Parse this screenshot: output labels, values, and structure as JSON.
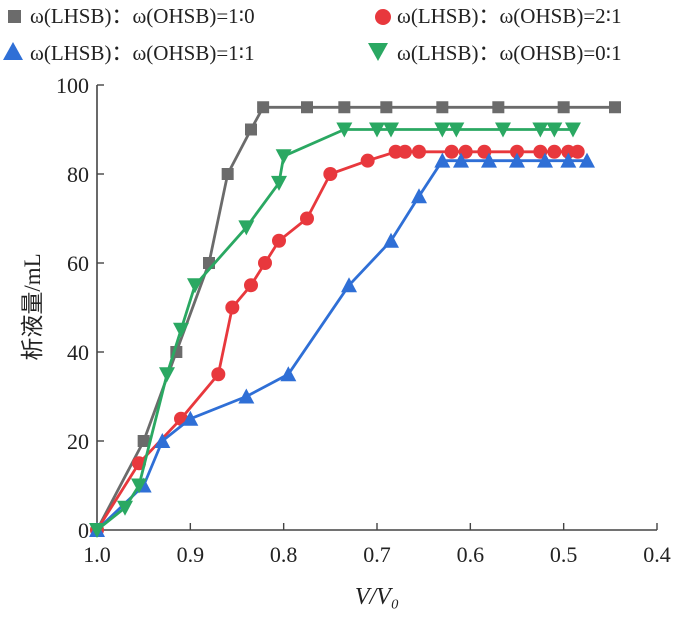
{
  "chart_data": {
    "type": "line",
    "xlabel": "V/V₀",
    "ylabel": "析液量/mL",
    "xlim": [
      1.0,
      0.4
    ],
    "ylim": [
      0,
      100
    ],
    "x_reversed": true,
    "x_ticks": [
      "1.0",
      "0.9",
      "0.8",
      "0.7",
      "0.6",
      "0.5",
      "0.4"
    ],
    "y_ticks": [
      "0",
      "20",
      "40",
      "60",
      "80",
      "100"
    ],
    "grid": false,
    "legend_position": "top",
    "series": [
      {
        "name": "ω(LHSB)：ω(OHSB)=1∶0",
        "color": "#6b6b6b",
        "marker": "square",
        "x": [
          1.0,
          0.95,
          0.915,
          0.88,
          0.86,
          0.835,
          0.822,
          0.775,
          0.735,
          0.69,
          0.63,
          0.57,
          0.5,
          0.445
        ],
        "y": [
          0,
          20,
          40,
          60,
          80,
          90,
          95,
          95,
          95,
          95,
          95,
          95,
          95,
          95
        ]
      },
      {
        "name": "ω(LHSB)：ω(OHSB)=2∶1",
        "color": "#e8383d",
        "marker": "circle",
        "x": [
          1.0,
          0.955,
          0.91,
          0.87,
          0.855,
          0.835,
          0.82,
          0.805,
          0.775,
          0.75,
          0.71,
          0.68,
          0.67,
          0.655,
          0.62,
          0.605,
          0.585,
          0.55,
          0.525,
          0.51,
          0.495,
          0.485
        ],
        "y": [
          0,
          15,
          25,
          35,
          50,
          55,
          60,
          65,
          70,
          80,
          83,
          85,
          85,
          85,
          85,
          85,
          85,
          85,
          85,
          85,
          85,
          85
        ]
      },
      {
        "name": "ω(LHSB)：ω(OHSB)=1∶1",
        "color": "#2f6fd6",
        "marker": "triangle-up",
        "x": [
          1.0,
          0.95,
          0.93,
          0.9,
          0.84,
          0.795,
          0.73,
          0.685,
          0.655,
          0.63,
          0.61,
          0.58,
          0.55,
          0.52,
          0.495,
          0.475
        ],
        "y": [
          0,
          10,
          20,
          25,
          30,
          35,
          55,
          65,
          75,
          83,
          83,
          83,
          83,
          83,
          83,
          83
        ]
      },
      {
        "name": "ω(LHSB)：ω(OHSB)=0∶1",
        "color": "#2aa862",
        "marker": "triangle-down",
        "x": [
          1.0,
          0.97,
          0.955,
          0.925,
          0.91,
          0.895,
          0.84,
          0.805,
          0.8,
          0.735,
          0.7,
          0.685,
          0.63,
          0.615,
          0.565,
          0.525,
          0.51,
          0.49
        ],
        "y": [
          0,
          5,
          10,
          35,
          45,
          55,
          68,
          78,
          84,
          90,
          90,
          90,
          90,
          90,
          90,
          90,
          90,
          90
        ]
      }
    ]
  }
}
